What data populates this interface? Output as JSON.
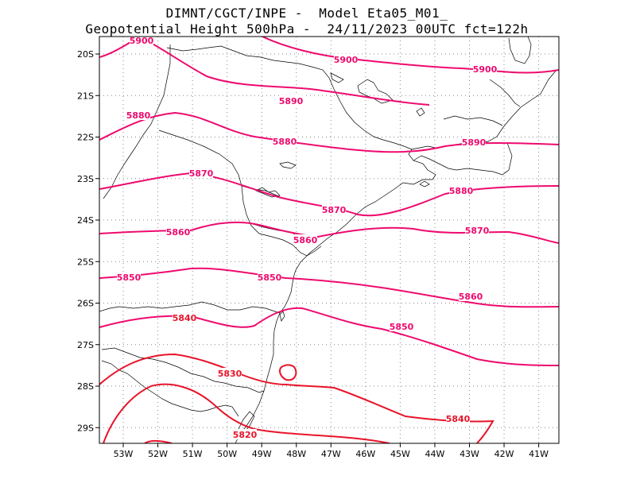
{
  "title": {
    "line1": "DIMNT/CGCT/INPE -  Model Eta05_M01_",
    "line2": "Geopotential Height 500hPa -  24/11/2023 00UTC fct=122h"
  },
  "map": {
    "lon_labels": [
      "53W",
      "52W",
      "51W",
      "50W",
      "49W",
      "48W",
      "47W",
      "46W",
      "45W",
      "44W",
      "43W",
      "42W",
      "41W"
    ],
    "lat_labels": [
      "20S",
      "21S",
      "22S",
      "23S",
      "24S",
      "25S",
      "26S",
      "27S",
      "28S",
      "29S"
    ],
    "colors": {
      "contour_high": "#ee0a6e",
      "contour_low": "#e8142a",
      "coast": "#000000",
      "grid": "#888888"
    },
    "contour_labels": [
      {
        "text": "5900",
        "color": "#ee0a6e"
      },
      {
        "text": "5900",
        "color": "#ee0a6e"
      },
      {
        "text": "5900",
        "color": "#ee0a6e"
      },
      {
        "text": "5890",
        "color": "#ee0a6e"
      },
      {
        "text": "5890",
        "color": "#ee0a6e"
      },
      {
        "text": "5880",
        "color": "#ee0a6e"
      },
      {
        "text": "5880",
        "color": "#ee0a6e"
      },
      {
        "text": "5880",
        "color": "#ee0a6e"
      },
      {
        "text": "5870",
        "color": "#ee0a6e"
      },
      {
        "text": "5870",
        "color": "#ee0a6e"
      },
      {
        "text": "5870",
        "color": "#ee0a6e"
      },
      {
        "text": "5860",
        "color": "#ee0a6e"
      },
      {
        "text": "5860",
        "color": "#ee0a6e"
      },
      {
        "text": "5860",
        "color": "#ee0a6e"
      },
      {
        "text": "5850",
        "color": "#ee0a6e"
      },
      {
        "text": "5850",
        "color": "#ee0a6e"
      },
      {
        "text": "5850",
        "color": "#ee0a6e"
      },
      {
        "text": "5840",
        "color": "#e8142a"
      },
      {
        "text": "5840",
        "color": "#e8142a"
      },
      {
        "text": "5830",
        "color": "#e8142a"
      },
      {
        "text": "5820",
        "color": "#e8142a"
      }
    ]
  }
}
